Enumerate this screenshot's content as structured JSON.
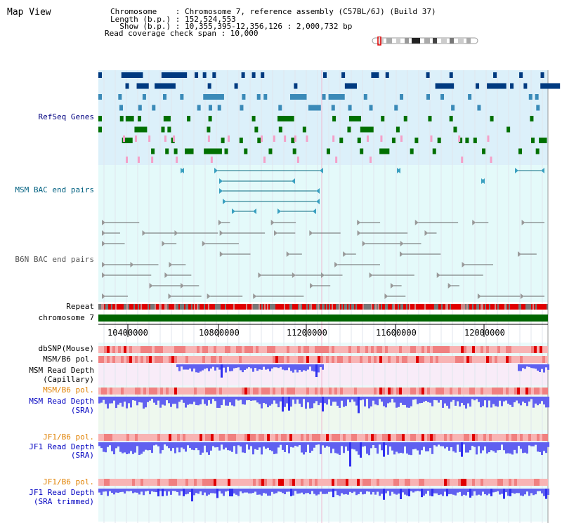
{
  "header": {
    "title": "Map View",
    "line1": "Chromosome    : Chromosome 7, reference assembly (C57BL/6J) (Build 37)",
    "line2": "Length (b.p.) : 152,524,553",
    "line3": "  Show (b.p.) : 10,355,395-12,356,126 : 2,000,732 bp",
    "line4": "Read coverage check span : 10,000"
  },
  "tracks": {
    "refseq": "RefSeq Genes",
    "msm_bac": "MSM BAC end pairs",
    "b6n_bac": "B6N BAC end pairs",
    "repeat": "Repeat",
    "chromosome": "chromosome 7",
    "dbsnp": "dbSNP(Mouse)",
    "msm_b6_pol_1": "MSM/B6 pol.",
    "msm_depth_cap_1": "MSM Read Depth",
    "msm_depth_cap_2": "(Capillary)",
    "msm_b6_pol_2": "MSM/B6 pol.",
    "msm_depth_sra_1": "MSM Read Depth",
    "msm_depth_sra_2": "(SRA)",
    "jf1_b6_pol_1": "JF1/B6 pol.",
    "jf1_depth_sra_1": "JF1 Read Depth",
    "jf1_depth_sra_2": "(SRA)",
    "jf1_b6_pol_2": "JF1/B6 pol.",
    "jf1_depth_trim_1": "JF1 Read Depth",
    "jf1_depth_trim_2": "(SRA trimmed)"
  },
  "axis": {
    "ticks": [
      "10400000",
      "10800000",
      "11200000",
      "11600000",
      "12000000"
    ]
  },
  "colors": {
    "refseq_bg": "#dcf0fa",
    "bac_bg": "#e4fafa",
    "gene_dark": "#003a80",
    "gene_mid": "#3a8ab8",
    "gene_green": "#007000",
    "pink": "#f4a0c8",
    "repeat_red": "#e00000",
    "chromosome_green": "#006400",
    "depth_blue": "#6060f0",
    "pol_pink": "#f8b4b4"
  }
}
